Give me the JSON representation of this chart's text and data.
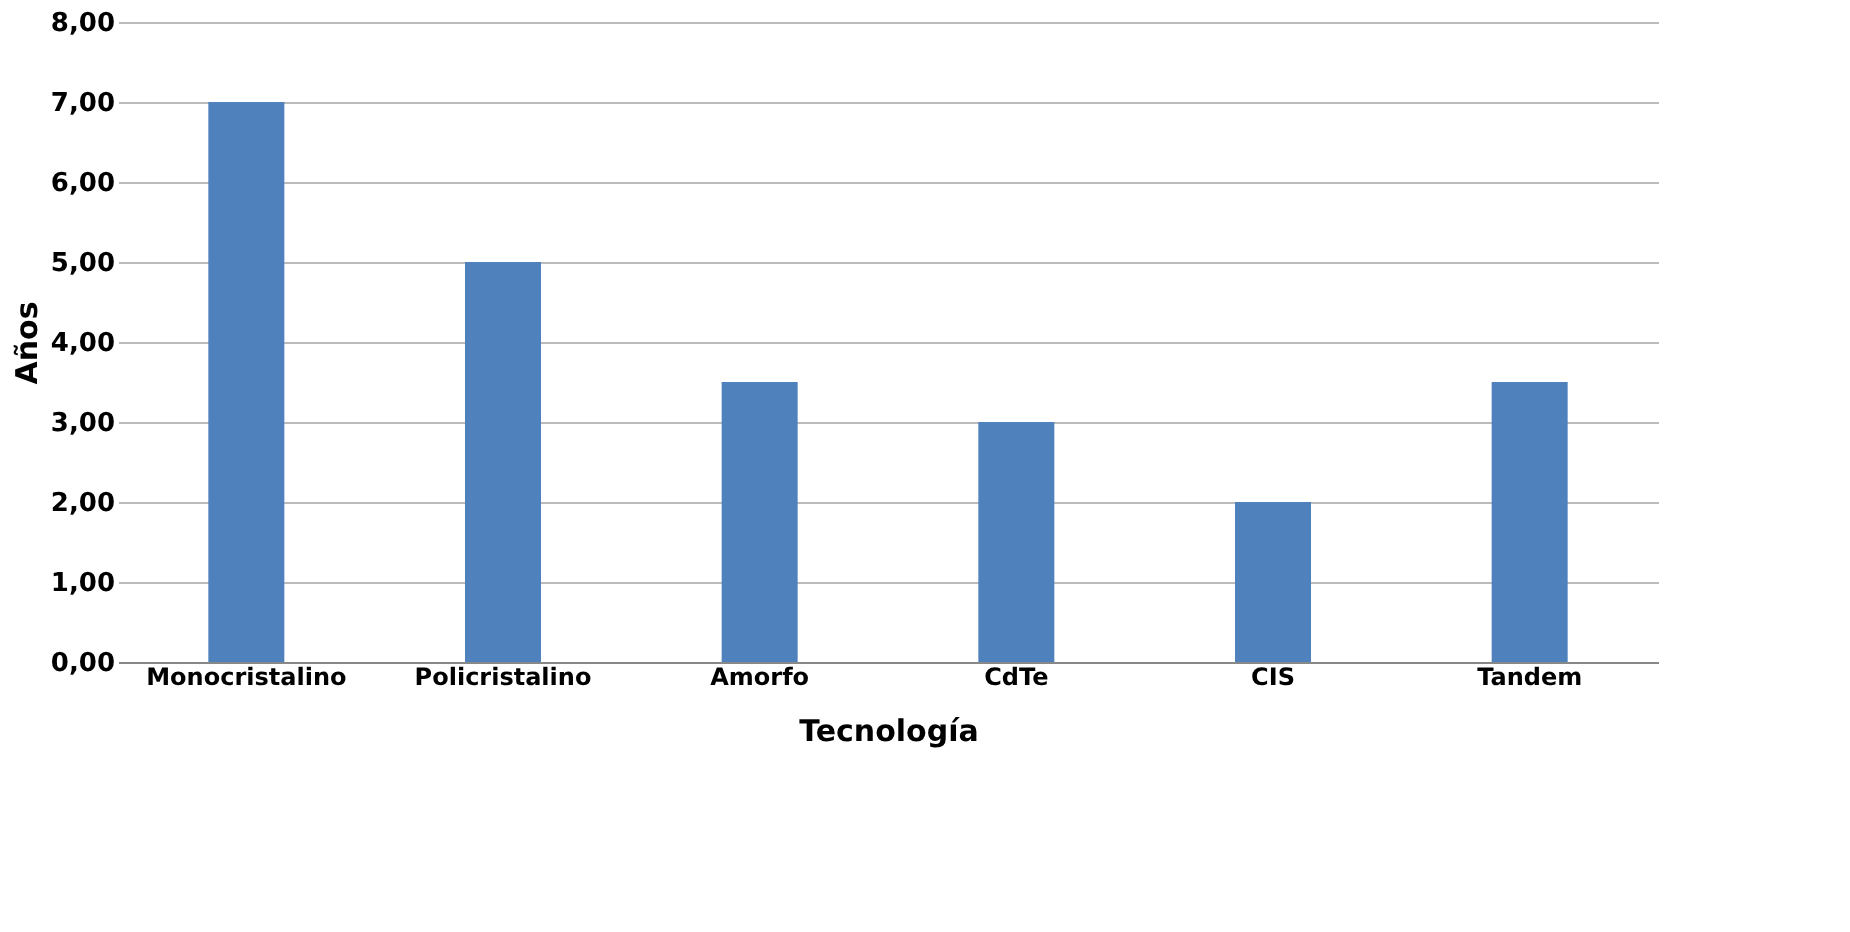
{
  "chart_data": {
    "type": "bar",
    "xlabel": "Tecnología",
    "ylabel": "Años",
    "categories": [
      "Monocristalino",
      "Policristalino",
      "Amorfo",
      "CdTe",
      "CIS",
      "Tandem"
    ],
    "values": [
      7,
      5,
      3.5,
      3,
      2,
      3.5
    ],
    "color": "#4f81bd",
    "ylim": [
      0,
      8
    ],
    "yticks": [
      {
        "value": 0,
        "label": "0,00"
      },
      {
        "value": 1,
        "label": "1,00"
      },
      {
        "value": 2,
        "label": "2,00"
      },
      {
        "value": 3,
        "label": "3,00"
      },
      {
        "value": 4,
        "label": "4,00"
      },
      {
        "value": 5,
        "label": "5,00"
      },
      {
        "value": 6,
        "label": "6,00"
      },
      {
        "value": 7,
        "label": "7,00"
      },
      {
        "value": 8,
        "label": "8,00"
      }
    ],
    "grid": "y"
  }
}
